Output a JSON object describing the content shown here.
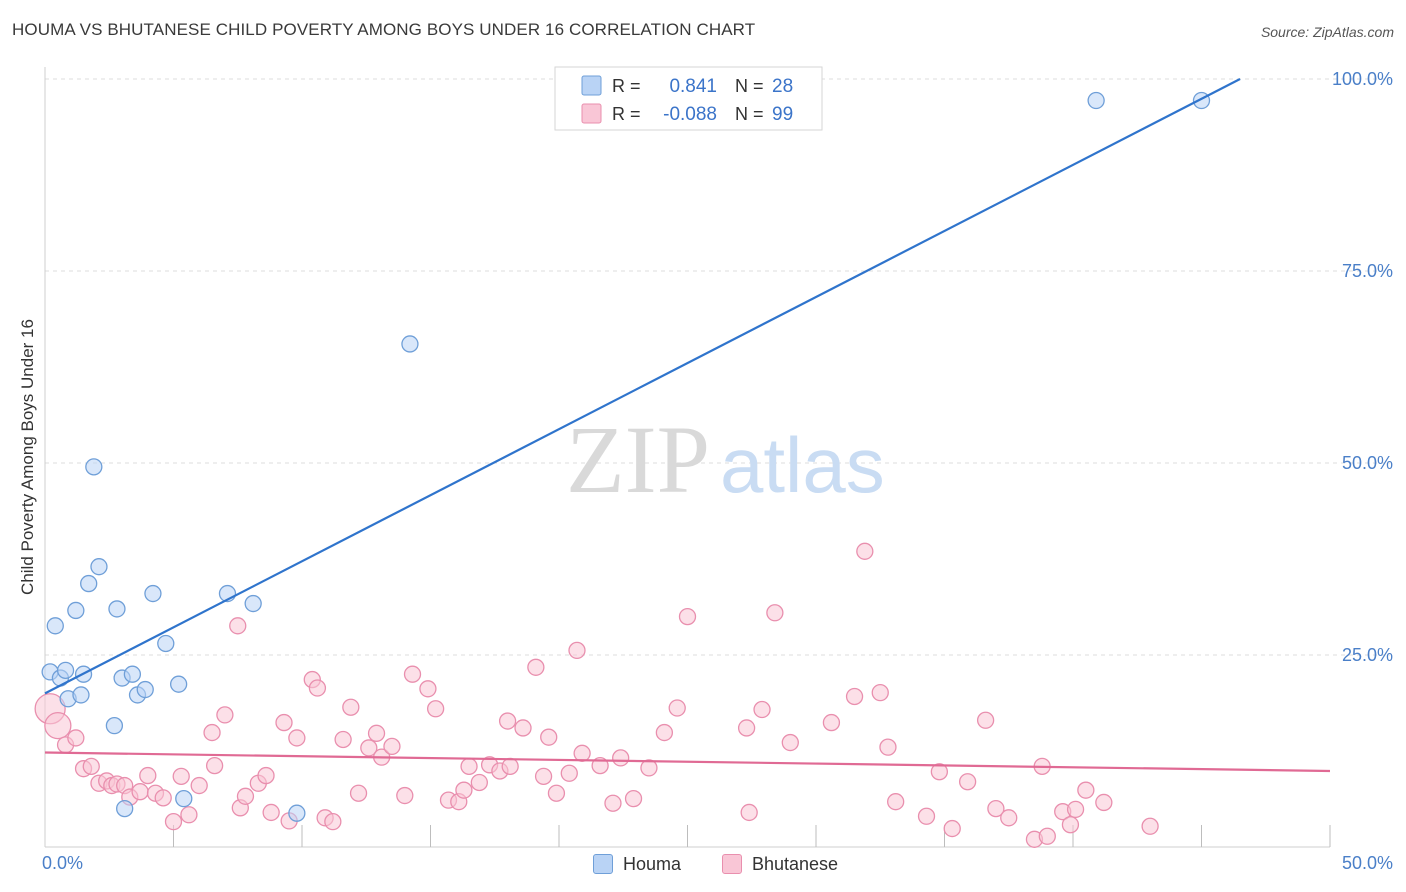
{
  "title": "HOUMA VS BHUTANESE CHILD POVERTY AMONG BOYS UNDER 16 CORRELATION CHART",
  "source": "Source: ZipAtlas.com",
  "watermark": {
    "zip": "ZIP",
    "atlas": "atlas"
  },
  "colors": {
    "houma_fill": "#b9d3f5",
    "houma_stroke": "#6f9fd8",
    "houma_line": "#2f74cc",
    "bhutanese_fill": "#f9c6d6",
    "bhutanese_stroke": "#e98fae",
    "bhutanese_line": "#e06a94",
    "tick_text": "#4a7fc8",
    "grid": "#dddddd"
  },
  "legend_stats": {
    "rows": [
      {
        "r_label": "R =",
        "r_value": "0.841",
        "n_label": "N =",
        "n_value": "28"
      },
      {
        "r_label": "R =",
        "r_value": "-0.088",
        "n_label": "N =",
        "n_value": "99"
      }
    ]
  },
  "chart_data": {
    "type": "scatter",
    "title": "HOUMA VS BHUTANESE CHILD POVERTY AMONG BOYS UNDER 16 CORRELATION CHART",
    "xlabel": "",
    "ylabel": "Child Poverty Among Boys Under 16",
    "xlim": [
      0,
      50
    ],
    "ylim": [
      0,
      100
    ],
    "x_tick_labels": [
      "0.0%",
      "50.0%"
    ],
    "y_ticks": [
      25,
      50,
      75,
      100
    ],
    "y_tick_labels": [
      "25.0%",
      "50.0%",
      "75.0%",
      "100.0%"
    ],
    "legend_position": "bottom-center",
    "series": [
      {
        "name": "Houma",
        "R": 0.841,
        "N": 28,
        "trend": {
          "x": [
            0,
            46.5
          ],
          "y": [
            20.0,
            100.0
          ]
        },
        "points": [
          {
            "x": 0.2,
            "y": 22.8
          },
          {
            "x": 0.4,
            "y": 28.8
          },
          {
            "x": 0.6,
            "y": 22.0
          },
          {
            "x": 0.8,
            "y": 23.0
          },
          {
            "x": 0.9,
            "y": 19.3
          },
          {
            "x": 1.2,
            "y": 30.8
          },
          {
            "x": 1.4,
            "y": 19.8
          },
          {
            "x": 1.5,
            "y": 22.5
          },
          {
            "x": 1.7,
            "y": 34.3
          },
          {
            "x": 1.9,
            "y": 49.5
          },
          {
            "x": 2.1,
            "y": 36.5
          },
          {
            "x": 2.7,
            "y": 15.8
          },
          {
            "x": 2.8,
            "y": 31.0
          },
          {
            "x": 3.0,
            "y": 22.0
          },
          {
            "x": 3.1,
            "y": 5.0
          },
          {
            "x": 3.4,
            "y": 22.5
          },
          {
            "x": 3.6,
            "y": 19.8
          },
          {
            "x": 3.9,
            "y": 20.5
          },
          {
            "x": 4.2,
            "y": 33.0
          },
          {
            "x": 4.7,
            "y": 26.5
          },
          {
            "x": 5.2,
            "y": 21.2
          },
          {
            "x": 5.4,
            "y": 6.3
          },
          {
            "x": 7.1,
            "y": 33.0
          },
          {
            "x": 8.1,
            "y": 31.7
          },
          {
            "x": 9.8,
            "y": 4.4
          },
          {
            "x": 14.2,
            "y": 65.5
          },
          {
            "x": 40.9,
            "y": 97.2
          },
          {
            "x": 45.0,
            "y": 97.2
          }
        ]
      },
      {
        "name": "Bhutanese",
        "R": -0.088,
        "N": 99,
        "trend": {
          "x": [
            0,
            50
          ],
          "y": [
            12.3,
            9.9
          ]
        },
        "points": [
          {
            "x": 0.2,
            "y": 18.0,
            "r": 15
          },
          {
            "x": 0.5,
            "y": 15.8,
            "r": 13
          },
          {
            "x": 0.8,
            "y": 13.3
          },
          {
            "x": 1.2,
            "y": 14.2
          },
          {
            "x": 1.5,
            "y": 10.2
          },
          {
            "x": 1.8,
            "y": 10.5
          },
          {
            "x": 2.1,
            "y": 8.3
          },
          {
            "x": 2.4,
            "y": 8.6
          },
          {
            "x": 2.6,
            "y": 8.0
          },
          {
            "x": 2.8,
            "y": 8.2
          },
          {
            "x": 3.1,
            "y": 8.0
          },
          {
            "x": 3.3,
            "y": 6.5
          },
          {
            "x": 3.7,
            "y": 7.2
          },
          {
            "x": 4.0,
            "y": 9.3
          },
          {
            "x": 4.3,
            "y": 7.0
          },
          {
            "x": 4.6,
            "y": 6.4
          },
          {
            "x": 5.0,
            "y": 3.3
          },
          {
            "x": 5.3,
            "y": 9.2
          },
          {
            "x": 5.6,
            "y": 4.2
          },
          {
            "x": 6.0,
            "y": 8.0
          },
          {
            "x": 6.5,
            "y": 14.9
          },
          {
            "x": 6.6,
            "y": 10.6
          },
          {
            "x": 7.0,
            "y": 17.2
          },
          {
            "x": 7.5,
            "y": 28.8
          },
          {
            "x": 7.6,
            "y": 5.1
          },
          {
            "x": 7.8,
            "y": 6.6
          },
          {
            "x": 8.3,
            "y": 8.3
          },
          {
            "x": 8.6,
            "y": 9.3
          },
          {
            "x": 8.8,
            "y": 4.5
          },
          {
            "x": 9.3,
            "y": 16.2
          },
          {
            "x": 9.5,
            "y": 3.4
          },
          {
            "x": 9.8,
            "y": 14.2
          },
          {
            "x": 10.4,
            "y": 21.8
          },
          {
            "x": 10.6,
            "y": 20.7
          },
          {
            "x": 10.9,
            "y": 3.8
          },
          {
            "x": 11.2,
            "y": 3.3
          },
          {
            "x": 11.6,
            "y": 14.0
          },
          {
            "x": 11.9,
            "y": 18.2
          },
          {
            "x": 12.2,
            "y": 7.0
          },
          {
            "x": 12.6,
            "y": 12.9
          },
          {
            "x": 12.9,
            "y": 14.8
          },
          {
            "x": 13.1,
            "y": 11.7
          },
          {
            "x": 13.5,
            "y": 13.1
          },
          {
            "x": 14.0,
            "y": 6.7
          },
          {
            "x": 14.3,
            "y": 22.5
          },
          {
            "x": 14.9,
            "y": 20.6
          },
          {
            "x": 15.2,
            "y": 18.0
          },
          {
            "x": 15.7,
            "y": 6.1
          },
          {
            "x": 16.1,
            "y": 5.9
          },
          {
            "x": 16.3,
            "y": 7.4
          },
          {
            "x": 16.5,
            "y": 10.5
          },
          {
            "x": 16.9,
            "y": 8.4
          },
          {
            "x": 17.3,
            "y": 10.7
          },
          {
            "x": 17.7,
            "y": 9.9
          },
          {
            "x": 18.0,
            "y": 16.4
          },
          {
            "x": 18.1,
            "y": 10.5
          },
          {
            "x": 18.6,
            "y": 15.5
          },
          {
            "x": 19.1,
            "y": 23.4
          },
          {
            "x": 19.4,
            "y": 9.2
          },
          {
            "x": 19.6,
            "y": 14.3
          },
          {
            "x": 19.9,
            "y": 7.0
          },
          {
            "x": 20.4,
            "y": 9.6
          },
          {
            "x": 20.7,
            "y": 25.6
          },
          {
            "x": 20.9,
            "y": 12.2
          },
          {
            "x": 21.6,
            "y": 10.6
          },
          {
            "x": 22.1,
            "y": 5.7
          },
          {
            "x": 22.4,
            "y": 11.6
          },
          {
            "x": 22.9,
            "y": 6.3
          },
          {
            "x": 23.5,
            "y": 10.3
          },
          {
            "x": 24.1,
            "y": 14.9
          },
          {
            "x": 24.6,
            "y": 18.1
          },
          {
            "x": 25.0,
            "y": 30.0
          },
          {
            "x": 27.3,
            "y": 15.5
          },
          {
            "x": 27.4,
            "y": 4.5
          },
          {
            "x": 27.9,
            "y": 17.9
          },
          {
            "x": 28.4,
            "y": 30.5
          },
          {
            "x": 29.0,
            "y": 13.6
          },
          {
            "x": 30.6,
            "y": 16.2
          },
          {
            "x": 31.5,
            "y": 19.6
          },
          {
            "x": 31.9,
            "y": 38.5
          },
          {
            "x": 32.5,
            "y": 20.1
          },
          {
            "x": 32.8,
            "y": 13.0
          },
          {
            "x": 33.1,
            "y": 5.9
          },
          {
            "x": 34.3,
            "y": 4.0
          },
          {
            "x": 34.8,
            "y": 9.8
          },
          {
            "x": 35.3,
            "y": 2.4
          },
          {
            "x": 35.9,
            "y": 8.5
          },
          {
            "x": 36.6,
            "y": 16.5
          },
          {
            "x": 37.0,
            "y": 5.0
          },
          {
            "x": 37.5,
            "y": 3.8
          },
          {
            "x": 38.5,
            "y": 1.0
          },
          {
            "x": 38.8,
            "y": 10.5
          },
          {
            "x": 39.0,
            "y": 1.4
          },
          {
            "x": 39.6,
            "y": 4.6
          },
          {
            "x": 39.9,
            "y": 2.9
          },
          {
            "x": 40.1,
            "y": 4.9
          },
          {
            "x": 40.5,
            "y": 7.4
          },
          {
            "x": 41.2,
            "y": 5.8
          },
          {
            "x": 43.0,
            "y": 2.7
          }
        ]
      }
    ]
  }
}
